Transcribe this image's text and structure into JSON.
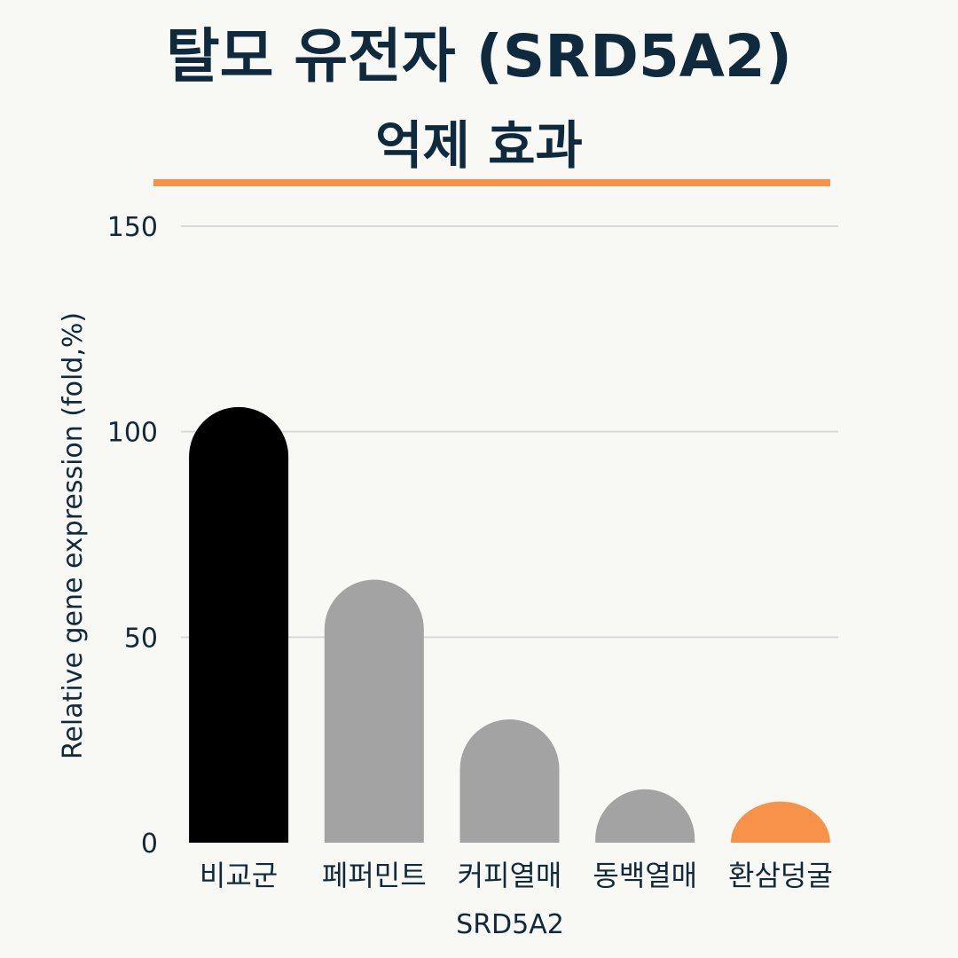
{
  "title": {
    "line1": "탈모 유전자 (SRD5A2)",
    "line2": "억제 효과"
  },
  "colors": {
    "background": "#f8f8f5",
    "title": "#0f2a3c",
    "accent": "#f8924a",
    "control_bar": "#000000",
    "sample_bar": "#a3a3a3",
    "highlight_bar": "#f8924a",
    "gridline": "#d9d9d9"
  },
  "chart_data": {
    "type": "bar",
    "categories": [
      "비교군",
      "페퍼민트",
      "커피열매",
      "동백열매",
      "환삼덩굴"
    ],
    "values": [
      106,
      64,
      30,
      13,
      10
    ],
    "bar_colors": [
      "#000000",
      "#a3a3a3",
      "#a3a3a3",
      "#a3a3a3",
      "#f8924a"
    ],
    "xlabel": "SRD5A2",
    "ylabel": "Relative gene expression (fold,%)",
    "ylim": [
      0,
      150
    ],
    "yticks": [
      0,
      50,
      100,
      150
    ],
    "grid": true,
    "bar_style": "rounded-top"
  }
}
